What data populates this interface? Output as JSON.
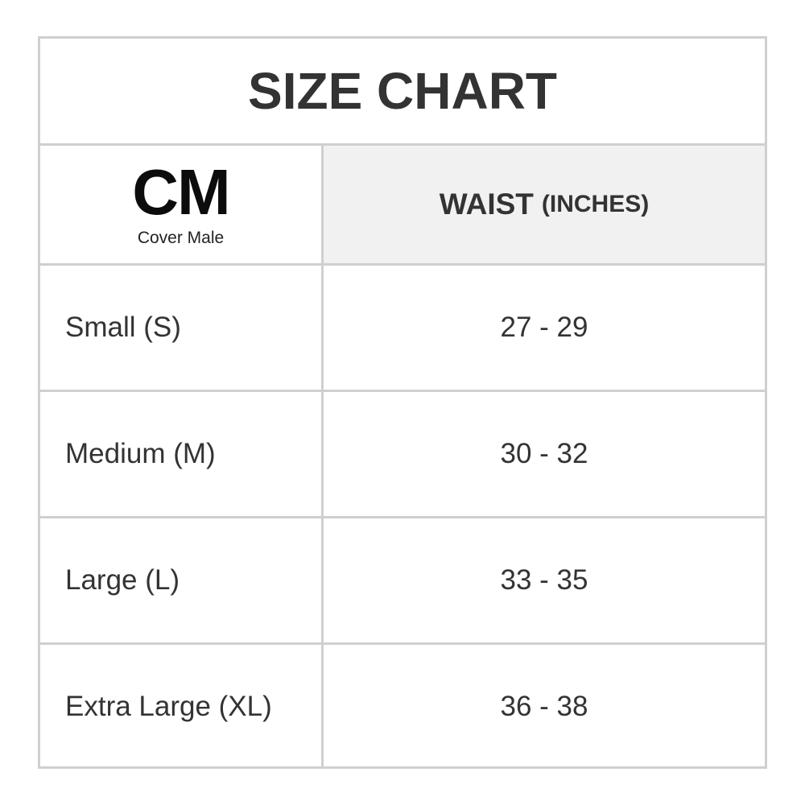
{
  "title": "SIZE CHART",
  "logo": {
    "mark": "CM",
    "name": "Cover Male"
  },
  "header": {
    "measure": "WAIST",
    "unit": "(INCHES)"
  },
  "rows": [
    {
      "size": "Small (S)",
      "waist": "27 - 29"
    },
    {
      "size": "Medium (M)",
      "waist": "30 - 32"
    },
    {
      "size": "Large (L)",
      "waist": "33 - 35"
    },
    {
      "size": "Extra Large (XL)",
      "waist": "36 - 38"
    }
  ]
}
